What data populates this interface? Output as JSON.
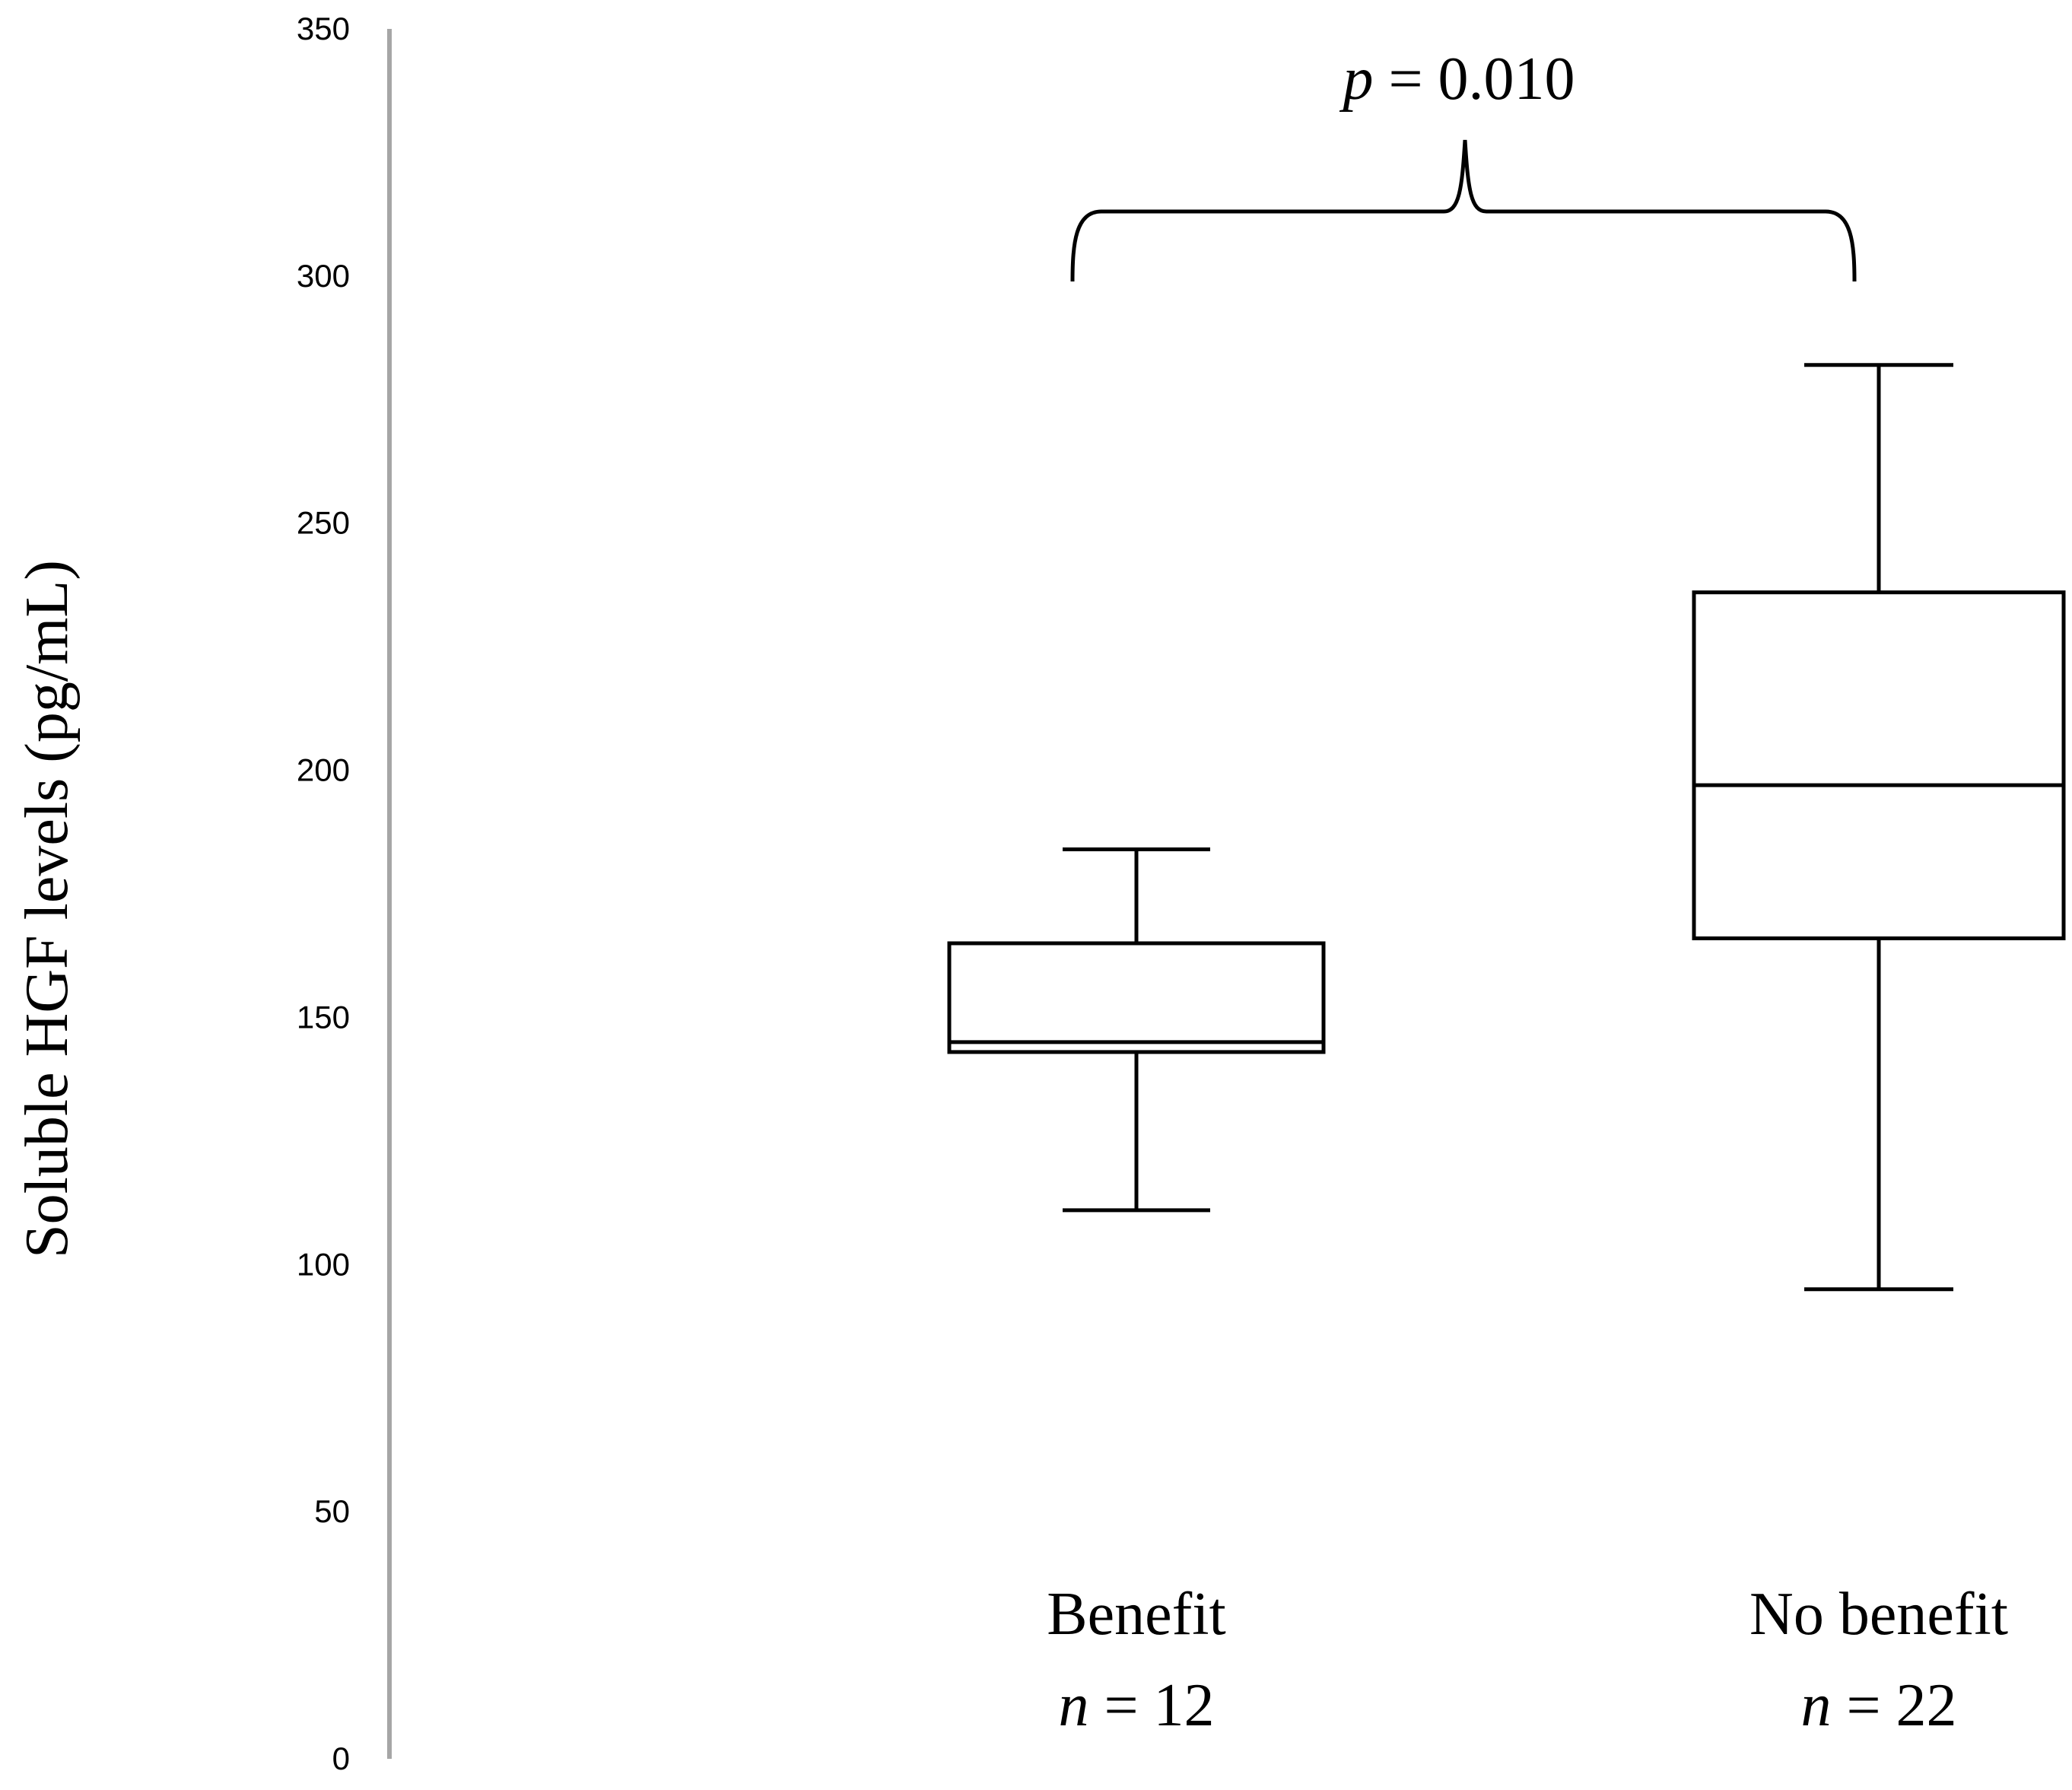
{
  "chart_data": {
    "type": "box",
    "ylabel": "Soluble HGF levels (pg/mL)",
    "ylim": [
      0,
      350
    ],
    "yticks": [
      0,
      50,
      100,
      150,
      200,
      250,
      300,
      350
    ],
    "grid": false,
    "groups": [
      {
        "label": "Benefit",
        "n_var": "n",
        "n_value": "= 12",
        "min": 111,
        "q1": 143,
        "median": 145,
        "q3": 165,
        "max": 184
      },
      {
        "label": "No benefit",
        "n_var": "n",
        "n_value": "= 22",
        "min": 95,
        "q1": 166,
        "median": 197,
        "q3": 236,
        "max": 282
      }
    ],
    "annotation": {
      "var": "p",
      "text": "= 0.010"
    }
  }
}
